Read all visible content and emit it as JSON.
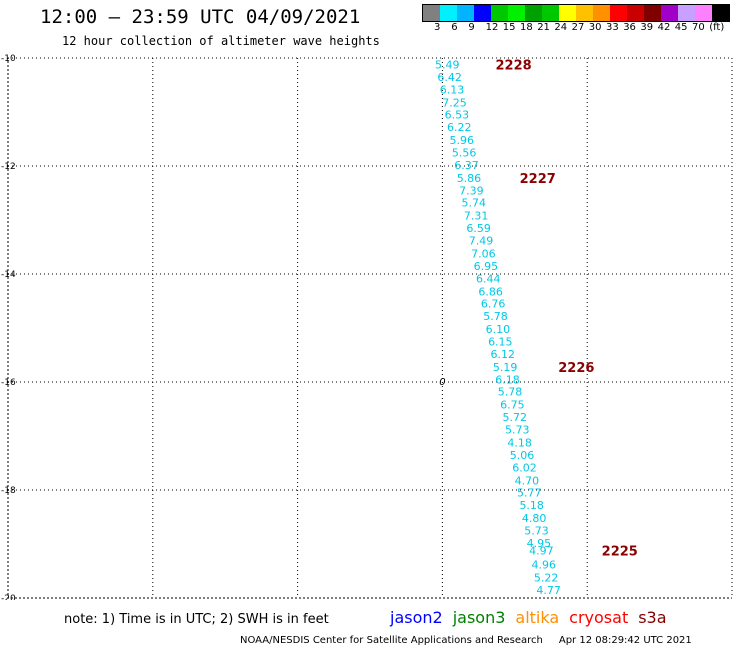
{
  "header": {
    "title": "12:00 — 23:59 UTC 04/09/2021",
    "subtitle": "12 hour collection of altimeter wave heights"
  },
  "color_legend": {
    "colors": [
      "#808080",
      "#00f0ff",
      "#00b4ff",
      "#0000ff",
      "#00c800",
      "#00f000",
      "#00a000",
      "#00c800",
      "#ffff00",
      "#ffc000",
      "#ff9000",
      "#ff0000",
      "#c80000",
      "#800000",
      "#a000c8",
      "#c8a0ff",
      "#ff80ff",
      "#000000"
    ],
    "labels": [
      "3",
      "6",
      "9",
      "12",
      "15",
      "18",
      "21",
      "24",
      "27",
      "30",
      "33",
      "36",
      "39",
      "42",
      "45",
      "70",
      "(ft)"
    ]
  },
  "chart_data": {
    "type": "scatter",
    "title": "12:00 — 23:59 UTC 04/09/2021",
    "subtitle": "12 hour collection of altimeter wave heights",
    "xlabel": "",
    "ylabel": "",
    "xlim": [
      -15,
      0
    ],
    "ylim": [
      -20,
      -10
    ],
    "x_ticks": [
      "-15",
      "-12",
      "-9",
      "-6",
      "-3",
      "0"
    ],
    "y_ticks": [
      "-10",
      "-12",
      "-14",
      "-16",
      "-18",
      "-20"
    ],
    "grid": true,
    "point_color": "#00c8e6",
    "track_label_color": "#8b0000",
    "points": [
      {
        "lon": -5.9,
        "lat": -10.12,
        "swh": "5.49"
      },
      {
        "lon": -5.85,
        "lat": -10.35,
        "swh": "6.42"
      },
      {
        "lon": -5.8,
        "lat": -10.58,
        "swh": "6.13"
      },
      {
        "lon": -5.75,
        "lat": -10.82,
        "swh": "7.25"
      },
      {
        "lon": -5.7,
        "lat": -11.05,
        "swh": "6.53"
      },
      {
        "lon": -5.65,
        "lat": -11.28,
        "swh": "6.22"
      },
      {
        "lon": -5.6,
        "lat": -11.52,
        "swh": "5.96"
      },
      {
        "lon": -5.55,
        "lat": -11.75,
        "swh": "5.56"
      },
      {
        "lon": -5.5,
        "lat": -11.98,
        "swh": "6.37"
      },
      {
        "lon": -5.45,
        "lat": -12.22,
        "swh": "5.86"
      },
      {
        "lon": -5.4,
        "lat": -12.45,
        "swh": "7.39"
      },
      {
        "lon": -5.35,
        "lat": -12.68,
        "swh": "5.74"
      },
      {
        "lon": -5.3,
        "lat": -12.92,
        "swh": "7.31"
      },
      {
        "lon": -5.25,
        "lat": -13.15,
        "swh": "6.59"
      },
      {
        "lon": -5.2,
        "lat": -13.38,
        "swh": "7.49"
      },
      {
        "lon": -5.15,
        "lat": -13.62,
        "swh": "7.06"
      },
      {
        "lon": -5.1,
        "lat": -13.85,
        "swh": "6.95"
      },
      {
        "lon": -5.05,
        "lat": -14.08,
        "swh": "6.44"
      },
      {
        "lon": -5.0,
        "lat": -14.32,
        "swh": "6.86"
      },
      {
        "lon": -4.95,
        "lat": -14.55,
        "swh": "6.76"
      },
      {
        "lon": -4.9,
        "lat": -14.78,
        "swh": "5.78"
      },
      {
        "lon": -4.85,
        "lat": -15.02,
        "swh": "6.10"
      },
      {
        "lon": -4.8,
        "lat": -15.25,
        "swh": "6.15"
      },
      {
        "lon": -4.75,
        "lat": -15.48,
        "swh": "6.12"
      },
      {
        "lon": -4.7,
        "lat": -15.72,
        "swh": "5.19"
      },
      {
        "lon": -4.65,
        "lat": -15.95,
        "swh": "6.18"
      },
      {
        "lon": -4.6,
        "lat": -16.18,
        "swh": "5.78"
      },
      {
        "lon": -4.55,
        "lat": -16.42,
        "swh": "6.75"
      },
      {
        "lon": -4.5,
        "lat": -16.65,
        "swh": "5.72"
      },
      {
        "lon": -4.45,
        "lat": -16.88,
        "swh": "5.73"
      },
      {
        "lon": -4.4,
        "lat": -17.12,
        "swh": "4.18"
      },
      {
        "lon": -4.35,
        "lat": -17.35,
        "swh": "5.06"
      },
      {
        "lon": -4.3,
        "lat": -17.58,
        "swh": "6.02"
      },
      {
        "lon": -4.25,
        "lat": -17.82,
        "swh": "4.70"
      },
      {
        "lon": -4.2,
        "lat": -18.05,
        "swh": "5.77"
      },
      {
        "lon": -4.15,
        "lat": -18.28,
        "swh": "5.18"
      },
      {
        "lon": -4.1,
        "lat": -18.52,
        "swh": "4.80"
      },
      {
        "lon": -4.05,
        "lat": -18.75,
        "swh": "5.73"
      },
      {
        "lon": -4.0,
        "lat": -18.98,
        "swh": "4.95"
      },
      {
        "lon": -3.95,
        "lat": -19.12,
        "swh": "4.97"
      },
      {
        "lon": -3.9,
        "lat": -19.38,
        "swh": "4.96"
      },
      {
        "lon": -3.85,
        "lat": -19.62,
        "swh": "5.22"
      },
      {
        "lon": -3.8,
        "lat": -19.85,
        "swh": "4.77"
      }
    ],
    "track_labels": [
      {
        "text": "2228",
        "lon": -4.9,
        "lat": -10.12
      },
      {
        "text": "2227",
        "lon": -4.4,
        "lat": -12.22
      },
      {
        "text": "2226",
        "lon": -3.6,
        "lat": -15.72
      },
      {
        "text": "2225",
        "lon": -2.7,
        "lat": -19.12
      }
    ],
    "annotations": [
      {
        "text": "0",
        "lon": -6.0,
        "lat": -15.98
      }
    ]
  },
  "footer": {
    "note": "note: 1) Time is in UTC; 2) SWH is in feet",
    "credit": "NOAA/NESDIS Center for Satellite Applications and Research",
    "timestamp": "Apr 12 08:29:42 UTC 2021"
  },
  "satellites": [
    {
      "name": "jason2",
      "color": "#0000ff"
    },
    {
      "name": "jason3",
      "color": "#008000"
    },
    {
      "name": "altika",
      "color": "#ff9000"
    },
    {
      "name": "cryosat",
      "color": "#ff0000"
    },
    {
      "name": "s3a",
      "color": "#800000"
    }
  ]
}
